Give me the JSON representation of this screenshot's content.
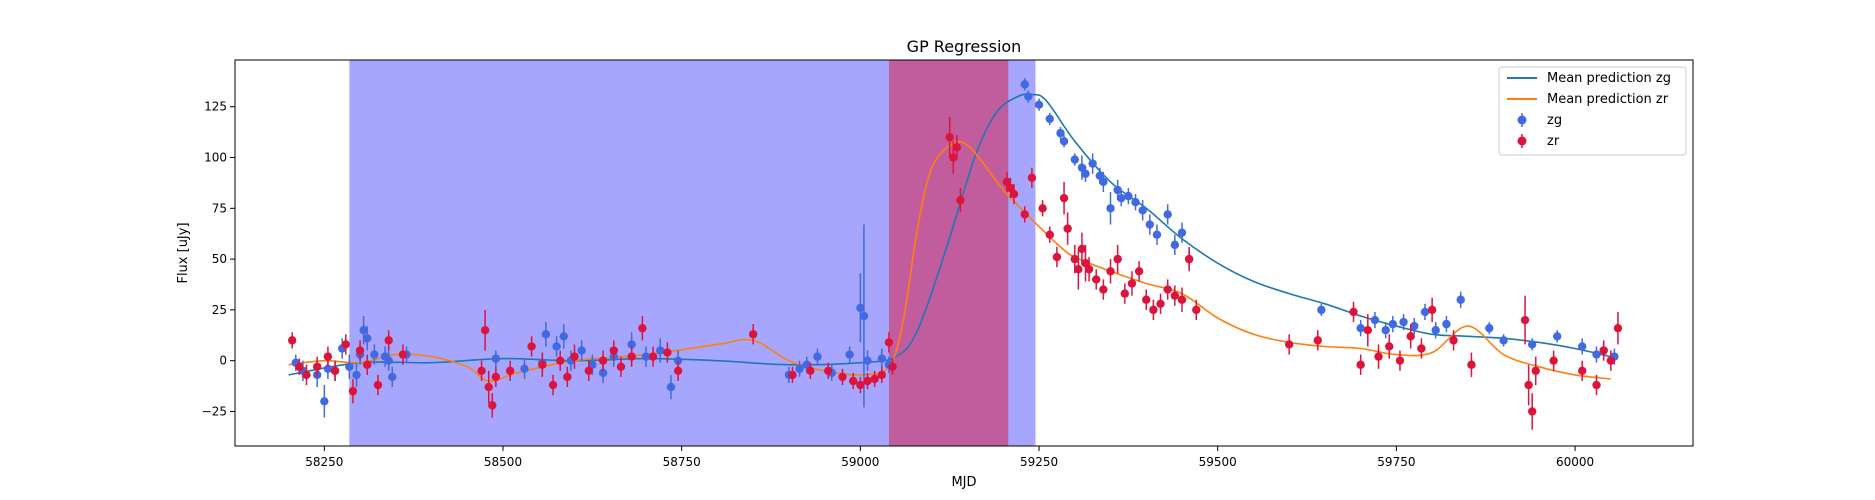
{
  "chart_data": {
    "type": "scatter",
    "title": "GP Regression",
    "xlabel": "MJD",
    "ylabel": "Flux [uJy]",
    "xlim": [
      58125,
      60165
    ],
    "ylim": [
      -42,
      148
    ],
    "xticks": [
      58250,
      58500,
      58750,
      59000,
      59250,
      59500,
      59750,
      60000
    ],
    "yticks": [
      -25,
      0,
      25,
      50,
      75,
      100,
      125
    ],
    "grid": false,
    "legend_position": "top-right",
    "colors": {
      "zg_points": "#4169e1",
      "zr_points": "#dc143c",
      "zg_mean": "#1f77b4",
      "zr_mean": "#ff7f0e",
      "span_zg": "#0000ff",
      "span_zr": "#dc143c"
    },
    "shaded_regions": [
      {
        "series": "zg",
        "x": [
          58285,
          59245
        ]
      },
      {
        "series": "zr",
        "x": [
          59040,
          59207
        ]
      }
    ],
    "legend": {
      "mean_zg": "Mean prediction zg",
      "mean_zr": "Mean prediction zr",
      "points_zg": "zg",
      "points_zr": "zr"
    },
    "mean_lines": [
      {
        "name": "Mean prediction zg",
        "color": "#1f77b4",
        "x": [
          58200,
          58300,
          58400,
          58500,
          58600,
          58700,
          58800,
          58900,
          59000,
          59050,
          59080,
          59120,
          59160,
          59190,
          59220,
          59240,
          59260,
          59300,
          59350,
          59400,
          59450,
          59500,
          59550,
          59600,
          59650,
          59700,
          59750,
          59800,
          59850,
          59900,
          59950,
          60000,
          60050
        ],
        "y": [
          -7,
          -1,
          -1,
          1,
          0,
          1,
          0,
          -2,
          -1,
          2,
          15,
          55,
          100,
          122,
          130,
          131,
          128,
          108,
          88,
          75,
          60,
          48,
          39,
          33,
          28,
          22,
          17,
          13,
          12,
          11,
          9,
          6,
          2
        ]
      },
      {
        "name": "Mean prediction zr",
        "color": "#ff7f0e",
        "x": [
          58200,
          58250,
          58300,
          58350,
          58400,
          58450,
          58480,
          58520,
          58600,
          58700,
          58800,
          58850,
          58900,
          58950,
          59000,
          59040,
          59060,
          59080,
          59100,
          59130,
          59150,
          59170,
          59200,
          59230,
          59250,
          59280,
          59300,
          59350,
          59400,
          59450,
          59500,
          59550,
          59600,
          59650,
          59700,
          59750,
          59800,
          59850,
          59900,
          59950,
          60000,
          60050
        ],
        "y": [
          -2,
          0,
          -1,
          3,
          2,
          -3,
          -10,
          -6,
          0,
          3,
          8,
          10,
          0,
          -5,
          -7,
          -3,
          20,
          65,
          95,
          107,
          106,
          98,
          84,
          73,
          66,
          56,
          51,
          44,
          38,
          33,
          21,
          13,
          9,
          7,
          6,
          3,
          4,
          17,
          3,
          -3,
          -7,
          -9
        ]
      }
    ],
    "series": [
      {
        "name": "zg",
        "color": "#4169e1",
        "x": [
          58210,
          58220,
          58240,
          58250,
          58255,
          58265,
          58275,
          58285,
          58295,
          58300,
          58305,
          58310,
          58320,
          58335,
          58340,
          58345,
          58365,
          58490,
          58530,
          58555,
          58560,
          58575,
          58585,
          58595,
          58610,
          58625,
          58640,
          58655,
          58680,
          58700,
          58720,
          58735,
          58745,
          58900,
          58915,
          58925,
          58940,
          58960,
          58985,
          59000,
          59005,
          59010,
          59030,
          59040,
          59230,
          59235,
          59250,
          59265,
          59280,
          59285,
          59300,
          59310,
          59315,
          59325,
          59335,
          59340,
          59350,
          59360,
          59365,
          59375,
          59385,
          59395,
          59405,
          59415,
          59430,
          59440,
          59450,
          59460,
          59645,
          59700,
          59720,
          59735,
          59745,
          59760,
          59775,
          59790,
          59805,
          59820,
          59840,
          59880,
          59900,
          59940,
          59975,
          60010,
          60030,
          60040,
          60055
        ],
        "y": [
          -1,
          -5,
          -7,
          -20,
          -4,
          -5,
          6,
          -3,
          -7,
          3,
          15,
          11,
          3,
          2,
          0,
          -8,
          3,
          1,
          -4,
          -1,
          13,
          7,
          12,
          0,
          5,
          -2,
          -6,
          2,
          8,
          2,
          5,
          -13,
          0,
          -7,
          -4,
          -2,
          2,
          -6,
          3,
          26,
          22,
          0,
          1,
          -2,
          136,
          130,
          126,
          119,
          112,
          108,
          99,
          95,
          92,
          97,
          91,
          88,
          75,
          84,
          80,
          81,
          78,
          74,
          67,
          62,
          72,
          57,
          63,
          50,
          25,
          16,
          20,
          15,
          18,
          19,
          17,
          24,
          15,
          18,
          30,
          16,
          10,
          8,
          12,
          7,
          3,
          5,
          2
        ],
        "err": [
          4,
          5,
          6,
          8,
          5,
          5,
          5,
          6,
          6,
          5,
          7,
          6,
          5,
          5,
          5,
          5,
          4,
          4,
          5,
          5,
          6,
          5,
          6,
          5,
          5,
          5,
          5,
          5,
          6,
          5,
          6,
          6,
          5,
          4,
          4,
          4,
          4,
          4,
          4,
          17,
          45,
          5,
          5,
          4,
          3,
          3,
          3,
          3,
          3,
          3,
          3,
          6,
          4,
          5,
          4,
          5,
          8,
          5,
          4,
          4,
          4,
          5,
          5,
          5,
          5,
          5,
          5,
          5,
          3,
          4,
          4,
          4,
          4,
          4,
          4,
          4,
          4,
          4,
          4,
          3,
          3,
          3,
          3,
          4,
          4,
          4,
          4
        ]
      },
      {
        "name": "zr",
        "color": "#dc143c",
        "x": [
          58205,
          58215,
          58225,
          58240,
          58255,
          58265,
          58280,
          58290,
          58300,
          58310,
          58325,
          58340,
          58360,
          58470,
          58475,
          58480,
          58485,
          58490,
          58510,
          58540,
          58555,
          58570,
          58580,
          58590,
          58600,
          58620,
          58640,
          58655,
          58665,
          58680,
          58695,
          58710,
          58730,
          58745,
          58850,
          58905,
          58930,
          58955,
          58975,
          58990,
          59000,
          59010,
          59020,
          59030,
          59040,
          59045,
          59125,
          59130,
          59135,
          59140,
          59205,
          59210,
          59215,
          59230,
          59240,
          59255,
          59265,
          59275,
          59285,
          59290,
          59300,
          59305,
          59310,
          59315,
          59320,
          59330,
          59340,
          59350,
          59360,
          59370,
          59380,
          59390,
          59400,
          59410,
          59420,
          59430,
          59440,
          59450,
          59460,
          59470,
          59600,
          59640,
          59690,
          59700,
          59710,
          59725,
          59740,
          59755,
          59770,
          59785,
          59800,
          59830,
          59855,
          59930,
          59935,
          59940,
          59945,
          59970,
          60010,
          60030,
          60040,
          60050,
          60060
        ],
        "y": [
          10,
          -3,
          -7,
          -3,
          2,
          -5,
          8,
          -15,
          5,
          -2,
          -12,
          10,
          3,
          -5,
          15,
          -13,
          -22,
          -8,
          -5,
          7,
          -2,
          -12,
          0,
          -8,
          2,
          -5,
          0,
          5,
          -3,
          2,
          16,
          2,
          4,
          -5,
          13,
          -7,
          -5,
          -5,
          -8,
          -10,
          -12,
          -10,
          -9,
          -7,
          9,
          -3,
          110,
          100,
          105,
          79,
          88,
          85,
          82,
          72,
          90,
          75,
          62,
          51,
          80,
          65,
          50,
          45,
          55,
          48,
          45,
          40,
          35,
          44,
          50,
          33,
          38,
          44,
          30,
          25,
          28,
          35,
          32,
          30,
          50,
          25,
          8,
          10,
          24,
          -2,
          15,
          2,
          7,
          0,
          12,
          6,
          25,
          10,
          -2,
          20,
          -12,
          -25,
          -5,
          0,
          -5,
          -12,
          5,
          0,
          16
        ],
        "err": [
          4,
          4,
          5,
          5,
          5,
          5,
          5,
          6,
          5,
          5,
          5,
          5,
          5,
          5,
          10,
          8,
          6,
          5,
          5,
          5,
          6,
          5,
          5,
          5,
          6,
          5,
          5,
          5,
          5,
          5,
          6,
          5,
          5,
          5,
          5,
          4,
          4,
          4,
          4,
          4,
          4,
          4,
          4,
          4,
          5,
          4,
          10,
          8,
          6,
          6,
          5,
          5,
          5,
          4,
          5,
          4,
          4,
          5,
          8,
          8,
          7,
          10,
          8,
          9,
          6,
          5,
          5,
          6,
          7,
          5,
          6,
          5,
          5,
          5,
          5,
          5,
          5,
          6,
          6,
          5,
          5,
          5,
          5,
          5,
          8,
          6,
          6,
          5,
          6,
          5,
          6,
          5,
          6,
          12,
          10,
          9,
          7,
          5,
          5,
          5,
          5,
          5,
          8
        ]
      }
    ]
  }
}
